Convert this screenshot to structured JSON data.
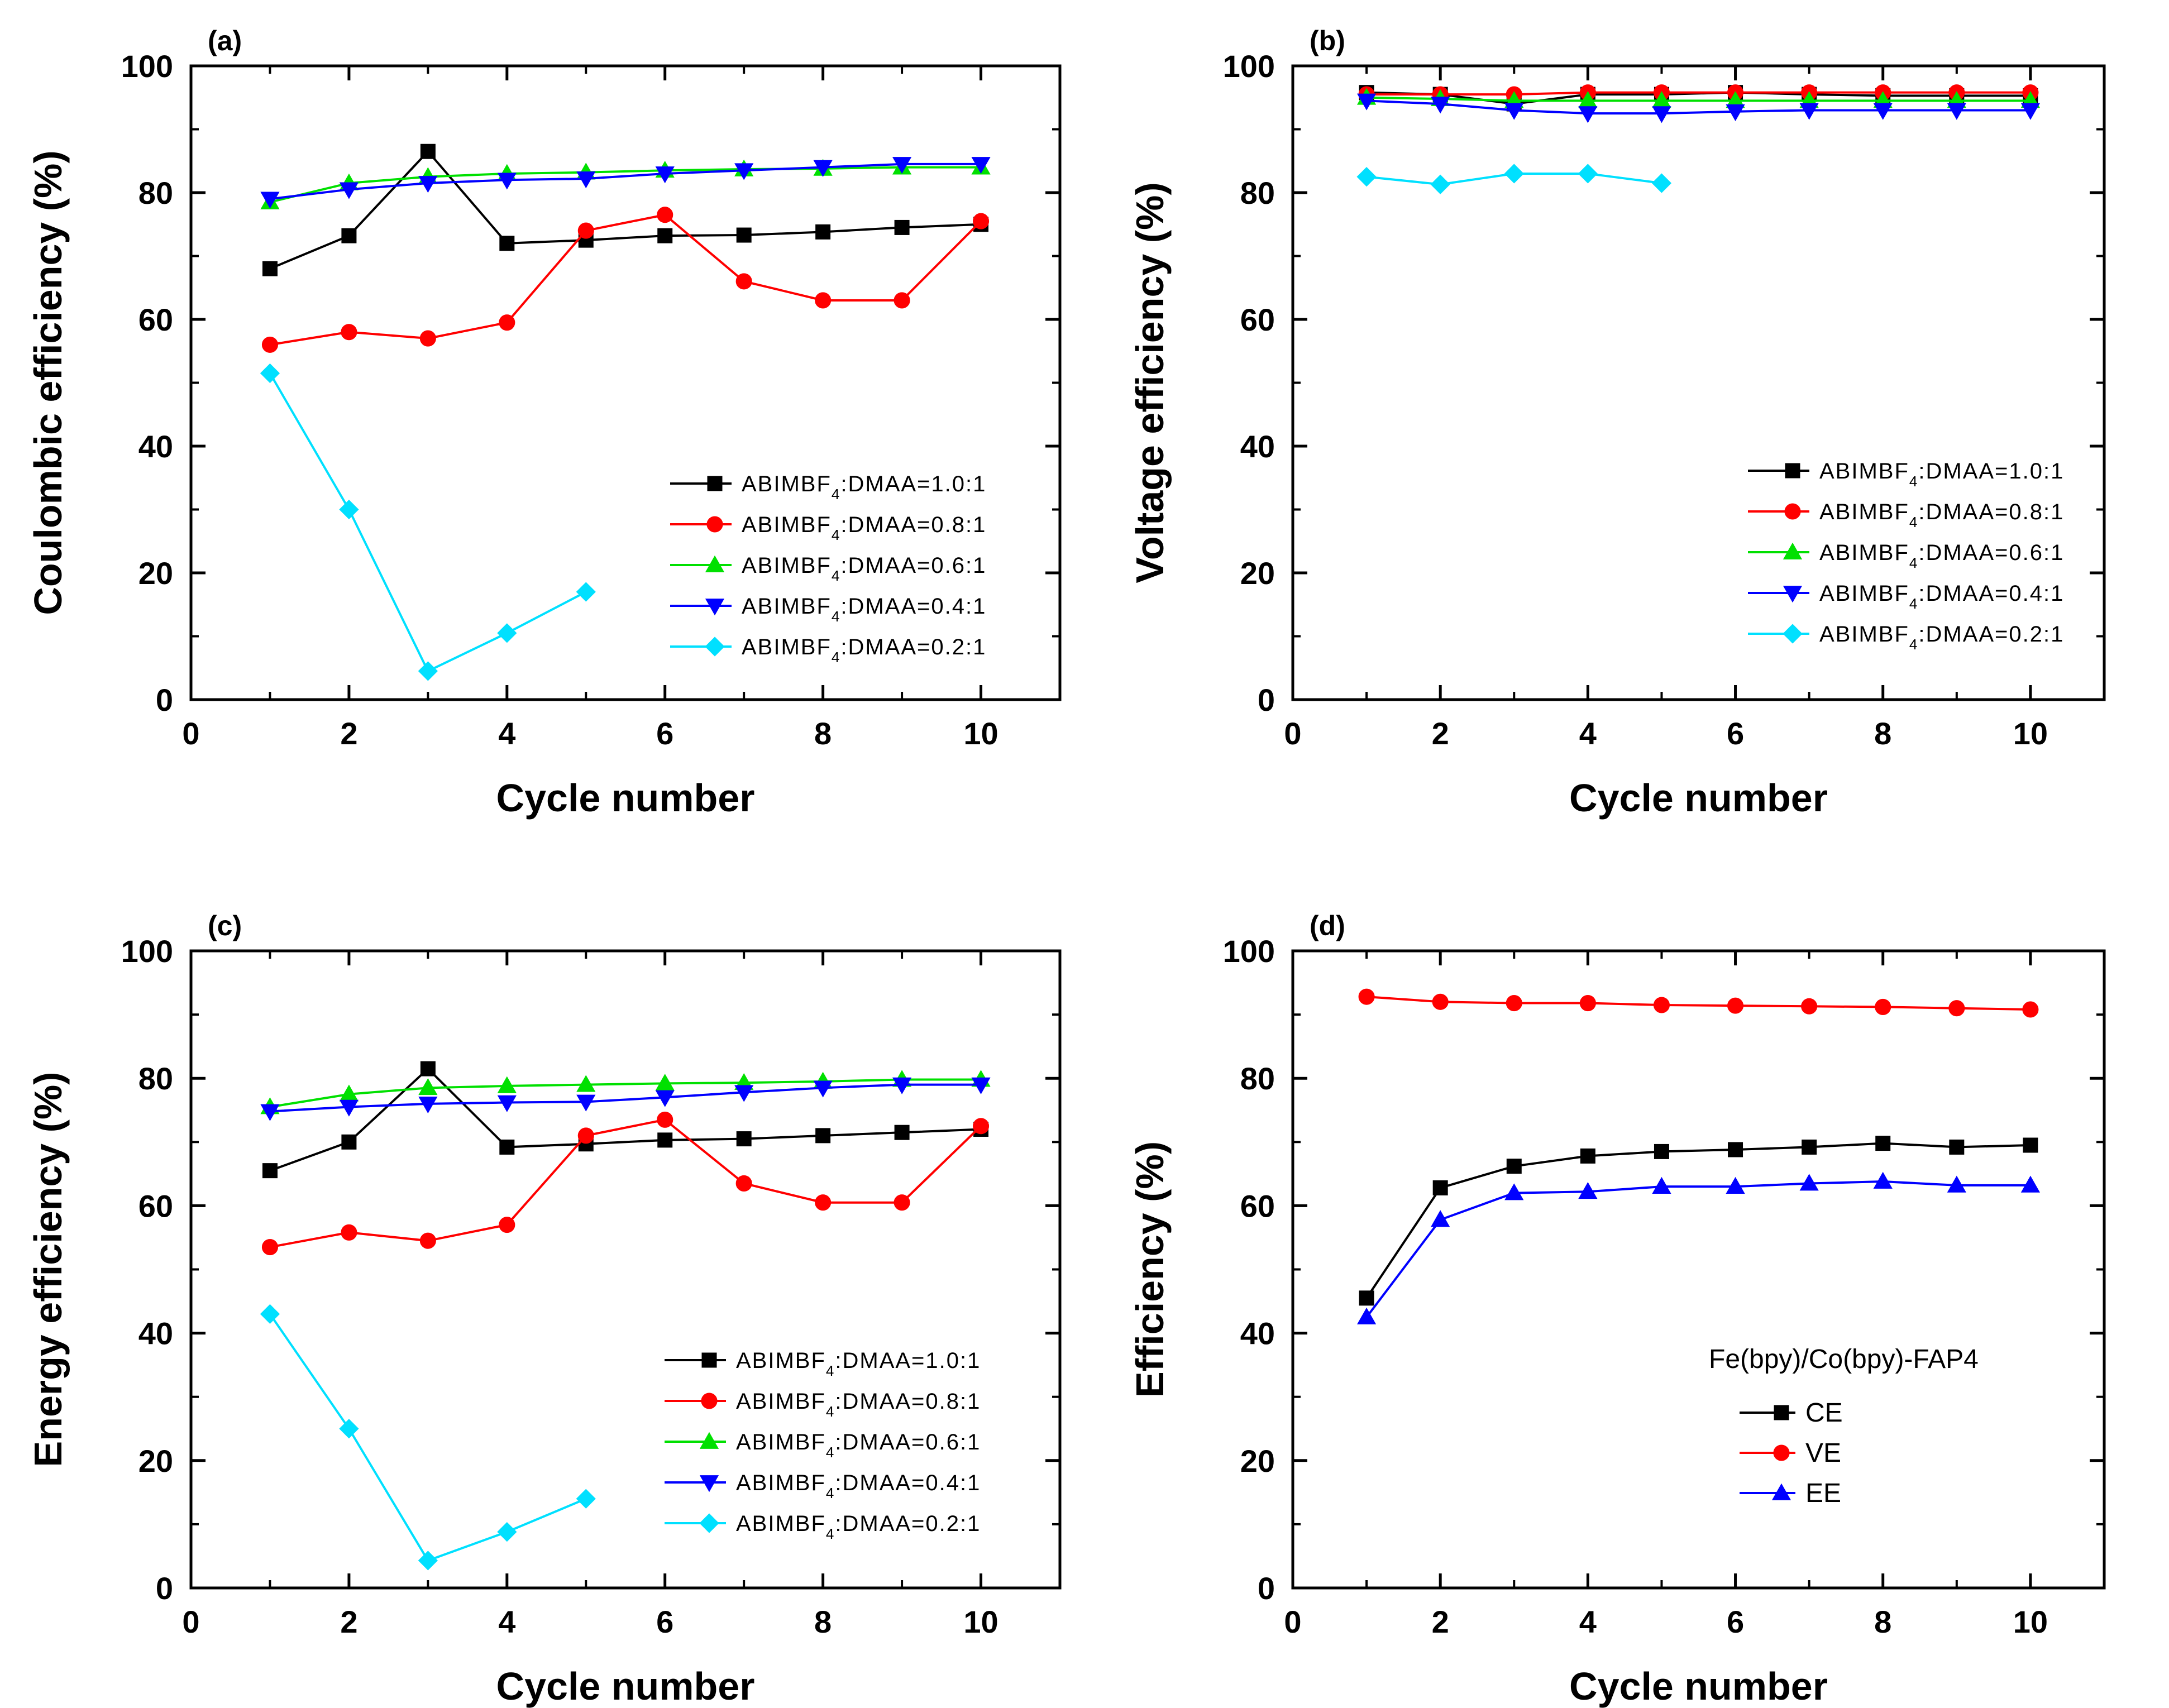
{
  "figure": {
    "colors": {
      "black": "#000000",
      "red": "#ff0000",
      "green": "#00e000",
      "blue": "#0000ff",
      "cyan": "#00e0ff"
    }
  },
  "chart_data": [
    {
      "id": "a",
      "panel_label": "(a)",
      "type": "line",
      "title": "",
      "xlabel": "Cycle number",
      "ylabel": "Coulombic efficiency (%)",
      "xlim": [
        0,
        11
      ],
      "ylim": [
        0,
        100
      ],
      "xticks": [
        0,
        2,
        4,
        6,
        8,
        10
      ],
      "yticks": [
        0,
        20,
        40,
        60,
        80,
        100
      ],
      "legend_position": "bottom-right",
      "series": [
        {
          "name": "ABIMBF4:DMAA=1.0:1",
          "label_main": "ABIMBF",
          "label_sub": "4",
          "label_rest": ":DMAA=1.0:1",
          "color": "#000000",
          "marker": "square",
          "x": [
            1,
            2,
            3,
            4,
            5,
            6,
            7,
            8,
            9,
            10
          ],
          "values": [
            68,
            73.2,
            86.5,
            72,
            72.5,
            73.2,
            73.3,
            73.8,
            74.5,
            75
          ]
        },
        {
          "name": "ABIMBF4:DMAA=0.8:1",
          "label_main": "ABIMBF",
          "label_sub": "4",
          "label_rest": ":DMAA=0.8:1",
          "color": "#ff0000",
          "marker": "circle",
          "x": [
            1,
            2,
            3,
            4,
            5,
            6,
            7,
            8,
            9,
            10
          ],
          "values": [
            56,
            58,
            57,
            59.5,
            74,
            76.5,
            66,
            63,
            63,
            75.5
          ]
        },
        {
          "name": "ABIMBF4:DMAA=0.6:1",
          "label_main": "ABIMBF",
          "label_sub": "4",
          "label_rest": ":DMAA=0.6:1",
          "color": "#00e000",
          "marker": "triangle-up",
          "x": [
            1,
            2,
            3,
            4,
            5,
            6,
            7,
            8,
            9,
            10
          ],
          "values": [
            78.5,
            81.5,
            82.5,
            83,
            83.2,
            83.5,
            83.7,
            83.8,
            84,
            84
          ]
        },
        {
          "name": "ABIMBF4:DMAA=0.4:1",
          "label_main": "ABIMBF",
          "label_sub": "4",
          "label_rest": ":DMAA=0.4:1",
          "color": "#0000ff",
          "marker": "triangle-down",
          "x": [
            1,
            2,
            3,
            4,
            5,
            6,
            7,
            8,
            9,
            10
          ],
          "values": [
            79,
            80.5,
            81.5,
            82,
            82.2,
            83,
            83.5,
            84,
            84.5,
            84.5
          ]
        },
        {
          "name": "ABIMBF4:DMAA=0.2:1",
          "label_main": "ABIMBF",
          "label_sub": "4",
          "label_rest": ":DMAA=0.2:1",
          "color": "#00e0ff",
          "marker": "diamond",
          "x": [
            1,
            2,
            3,
            4,
            5
          ],
          "values": [
            51.5,
            30,
            4.5,
            10.5,
            17
          ]
        }
      ]
    },
    {
      "id": "b",
      "panel_label": "(b)",
      "type": "line",
      "title": "",
      "xlabel": "Cycle number",
      "ylabel": "Voltage efficiency (%)",
      "xlim": [
        0,
        11
      ],
      "ylim": [
        0,
        100
      ],
      "xticks": [
        0,
        2,
        4,
        6,
        8,
        10
      ],
      "yticks": [
        0,
        20,
        40,
        60,
        80,
        100
      ],
      "legend_position": "bottom-right",
      "series": [
        {
          "name": "ABIMBF4:DMAA=1.0:1",
          "label_main": "ABIMBF",
          "label_sub": "4",
          "label_rest": ":DMAA=1.0:1",
          "color": "#000000",
          "marker": "square",
          "x": [
            1,
            2,
            3,
            4,
            5,
            6,
            7,
            8,
            9,
            10
          ],
          "values": [
            95.8,
            95.5,
            94,
            95.5,
            95.5,
            95.8,
            95.5,
            95.3,
            95.3,
            95.3
          ]
        },
        {
          "name": "ABIMBF4:DMAA=0.8:1",
          "label_main": "ABIMBF",
          "label_sub": "4",
          "label_rest": ":DMAA=0.8:1",
          "color": "#ff0000",
          "marker": "circle",
          "x": [
            1,
            2,
            3,
            4,
            5,
            6,
            7,
            8,
            9,
            10
          ],
          "values": [
            95.5,
            95.5,
            95.5,
            95.8,
            95.8,
            95.8,
            95.8,
            95.8,
            95.8,
            95.8
          ]
        },
        {
          "name": "ABIMBF4:DMAA=0.6:1",
          "label_main": "ABIMBF",
          "label_sub": "4",
          "label_rest": ":DMAA=0.6:1",
          "color": "#00e000",
          "marker": "triangle-up",
          "x": [
            1,
            2,
            3,
            4,
            5,
            6,
            7,
            8,
            9,
            10
          ],
          "values": [
            95,
            94.8,
            94.5,
            94.5,
            94.5,
            94.5,
            94.5,
            94.5,
            94.5,
            94.5
          ]
        },
        {
          "name": "ABIMBF4:DMAA=0.4:1",
          "label_main": "ABIMBF",
          "label_sub": "4",
          "label_rest": ":DMAA=0.4:1",
          "color": "#0000ff",
          "marker": "triangle-down",
          "x": [
            1,
            2,
            3,
            4,
            5,
            6,
            7,
            8,
            9,
            10
          ],
          "values": [
            94.5,
            94,
            93,
            92.5,
            92.5,
            92.8,
            93,
            93,
            93,
            93
          ]
        },
        {
          "name": "ABIMBF4:DMAA=0.2:1",
          "label_main": "ABIMBF",
          "label_sub": "4",
          "label_rest": ":DMAA=0.2:1",
          "color": "#00e0ff",
          "marker": "diamond",
          "x": [
            1,
            2,
            3,
            4,
            5
          ],
          "values": [
            82.5,
            81.3,
            83,
            83,
            81.5
          ]
        }
      ]
    },
    {
      "id": "c",
      "panel_label": "(c)",
      "type": "line",
      "title": "",
      "xlabel": "Cycle number",
      "ylabel": "Energy efficiency (%)",
      "xlim": [
        0,
        11
      ],
      "ylim": [
        0,
        100
      ],
      "xticks": [
        0,
        2,
        4,
        6,
        8,
        10
      ],
      "yticks": [
        0,
        20,
        40,
        60,
        80,
        100
      ],
      "legend_position": "bottom-right",
      "series": [
        {
          "name": "ABIMBF4:DMAA=1.0:1",
          "label_main": "ABIMBF",
          "label_sub": "4",
          "label_rest": ":DMAA=1.0:1",
          "color": "#000000",
          "marker": "square",
          "x": [
            1,
            2,
            3,
            4,
            5,
            6,
            7,
            8,
            9,
            10
          ],
          "values": [
            65.5,
            70,
            81.5,
            69.2,
            69.7,
            70.3,
            70.5,
            71,
            71.5,
            72
          ]
        },
        {
          "name": "ABIMBF4:DMAA=0.8:1",
          "label_main": "ABIMBF",
          "label_sub": "4",
          "label_rest": ":DMAA=0.8:1",
          "color": "#ff0000",
          "marker": "circle",
          "x": [
            1,
            2,
            3,
            4,
            5,
            6,
            7,
            8,
            9,
            10
          ],
          "values": [
            53.5,
            55.8,
            54.5,
            57,
            71,
            73.5,
            63.5,
            60.5,
            60.5,
            72.5
          ]
        },
        {
          "name": "ABIMBF4:DMAA=0.6:1",
          "label_main": "ABIMBF",
          "label_sub": "4",
          "label_rest": ":DMAA=0.6:1",
          "color": "#00e000",
          "marker": "triangle-up",
          "x": [
            1,
            2,
            3,
            4,
            5,
            6,
            7,
            8,
            9,
            10
          ],
          "values": [
            75.5,
            77.5,
            78.5,
            78.8,
            79,
            79.2,
            79.3,
            79.5,
            79.8,
            79.8
          ]
        },
        {
          "name": "ABIMBF4:DMAA=0.4:1",
          "label_main": "ABIMBF",
          "label_sub": "4",
          "label_rest": ":DMAA=0.4:1",
          "color": "#0000ff",
          "marker": "triangle-down",
          "x": [
            1,
            2,
            3,
            4,
            5,
            6,
            7,
            8,
            9,
            10
          ],
          "values": [
            74.8,
            75.5,
            76,
            76.2,
            76.3,
            77,
            77.8,
            78.5,
            79,
            79
          ]
        },
        {
          "name": "ABIMBF4:DMAA=0.2:1",
          "label_main": "ABIMBF",
          "label_sub": "4",
          "label_rest": ":DMAA=0.2:1",
          "color": "#00e0ff",
          "marker": "diamond",
          "x": [
            1,
            2,
            3,
            4,
            5
          ],
          "values": [
            43,
            25,
            4.3,
            8.8,
            14
          ]
        }
      ]
    },
    {
      "id": "d",
      "panel_label": "(d)",
      "type": "line",
      "title": "",
      "xlabel": "Cycle number",
      "ylabel": "Efficiency (%)",
      "xlim": [
        0,
        11
      ],
      "ylim": [
        0,
        100
      ],
      "xticks": [
        0,
        2,
        4,
        6,
        8,
        10
      ],
      "yticks": [
        0,
        20,
        40,
        60,
        80,
        100
      ],
      "legend_position": "bottom-right",
      "legend_title": "Fe(bpy)/Co(bpy)-FAP4",
      "series": [
        {
          "name": "CE",
          "color": "#000000",
          "marker": "square",
          "x": [
            1,
            2,
            3,
            4,
            5,
            6,
            7,
            8,
            9,
            10
          ],
          "values": [
            45.5,
            62.8,
            66.2,
            67.8,
            68.5,
            68.8,
            69.2,
            69.8,
            69.2,
            69.5
          ]
        },
        {
          "name": "VE",
          "color": "#ff0000",
          "marker": "circle",
          "x": [
            1,
            2,
            3,
            4,
            5,
            6,
            7,
            8,
            9,
            10
          ],
          "values": [
            92.8,
            92,
            91.8,
            91.8,
            91.5,
            91.4,
            91.3,
            91.2,
            91,
            90.8
          ]
        },
        {
          "name": "EE",
          "color": "#0000ff",
          "marker": "triangle-up",
          "x": [
            1,
            2,
            3,
            4,
            5,
            6,
            7,
            8,
            9,
            10
          ],
          "values": [
            42.5,
            57.8,
            62,
            62.2,
            63,
            63,
            63.5,
            63.8,
            63.2,
            63.2
          ]
        }
      ]
    }
  ]
}
